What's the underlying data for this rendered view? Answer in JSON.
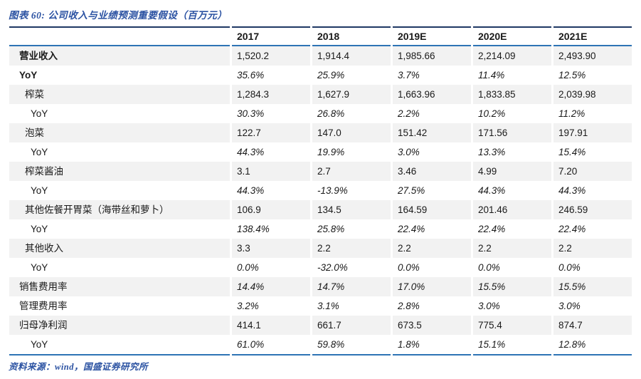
{
  "figure": {
    "title": "图表 60: 公司收入与业绩预测重要假设（百万元）"
  },
  "source_note": "资料来源：wind，国盛证券研究所",
  "colors": {
    "accent_blue": "#2B52A2",
    "dark_rule": "#1F3864",
    "blue_rule": "#2E74B5",
    "row_shade": "#F2F2F2",
    "text": "#1A1A1A"
  },
  "table": {
    "columns": [
      "",
      "2017",
      "2018",
      "2019E",
      "2020E",
      "2021E"
    ],
    "rows": [
      {
        "label": "营业收入",
        "indent": 0,
        "bold": true,
        "italic_values": false,
        "values": [
          "1,520.2",
          "1,914.4",
          "1,985.66",
          "2,214.09",
          "2,493.90"
        ]
      },
      {
        "label": "YoY",
        "indent": 0,
        "bold": true,
        "italic_values": true,
        "values": [
          "35.6%",
          "25.9%",
          "3.7%",
          "11.4%",
          "12.5%"
        ]
      },
      {
        "label": "榨菜",
        "indent": 1,
        "bold": false,
        "italic_values": false,
        "values": [
          "1,284.3",
          "1,627.9",
          "1,663.96",
          "1,833.85",
          "2,039.98"
        ]
      },
      {
        "label": "YoY",
        "indent": 2,
        "bold": false,
        "italic_values": true,
        "values": [
          "30.3%",
          "26.8%",
          "2.2%",
          "10.2%",
          "11.2%"
        ]
      },
      {
        "label": "泡菜",
        "indent": 1,
        "bold": false,
        "italic_values": false,
        "values": [
          "122.7",
          "147.0",
          "151.42",
          "171.56",
          "197.91"
        ]
      },
      {
        "label": "YoY",
        "indent": 2,
        "bold": false,
        "italic_values": true,
        "values": [
          "44.3%",
          "19.9%",
          "3.0%",
          "13.3%",
          "15.4%"
        ]
      },
      {
        "label": "榨菜酱油",
        "indent": 1,
        "bold": false,
        "italic_values": false,
        "values": [
          "3.1",
          "2.7",
          "3.46",
          "4.99",
          "7.20"
        ]
      },
      {
        "label": "YoY",
        "indent": 2,
        "bold": false,
        "italic_values": true,
        "values": [
          "44.3%",
          "-13.9%",
          "27.5%",
          "44.3%",
          "44.3%"
        ]
      },
      {
        "label": "其他佐餐开胃菜（海带丝和萝卜）",
        "indent": 1,
        "bold": false,
        "italic_values": false,
        "values": [
          "106.9",
          "134.5",
          "164.59",
          "201.46",
          "246.59"
        ]
      },
      {
        "label": "YoY",
        "indent": 2,
        "bold": false,
        "italic_values": true,
        "values": [
          "138.4%",
          "25.8%",
          "22.4%",
          "22.4%",
          "22.4%"
        ]
      },
      {
        "label": "其他收入",
        "indent": 1,
        "bold": false,
        "italic_values": false,
        "values": [
          "3.3",
          "2.2",
          "2.2",
          "2.2",
          "2.2"
        ]
      },
      {
        "label": "YoY",
        "indent": 2,
        "bold": false,
        "italic_values": true,
        "values": [
          "0.0%",
          "-32.0%",
          "0.0%",
          "0.0%",
          "0.0%"
        ]
      },
      {
        "label": "销售费用率",
        "indent": 0,
        "bold": false,
        "italic_values": true,
        "values": [
          "14.4%",
          "14.7%",
          "17.0%",
          "15.5%",
          "15.5%"
        ]
      },
      {
        "label": "管理费用率",
        "indent": 0,
        "bold": false,
        "italic_values": true,
        "values": [
          "3.2%",
          "3.1%",
          "2.8%",
          "3.0%",
          "3.0%"
        ]
      },
      {
        "label": "归母净利润",
        "indent": 0,
        "bold": false,
        "italic_values": false,
        "values": [
          "414.1",
          "661.7",
          "673.5",
          "775.4",
          "874.7"
        ]
      },
      {
        "label": "YoY",
        "indent": 2,
        "bold": false,
        "italic_values": true,
        "values": [
          "61.0%",
          "59.8%",
          "1.8%",
          "15.1%",
          "12.8%"
        ]
      }
    ]
  }
}
